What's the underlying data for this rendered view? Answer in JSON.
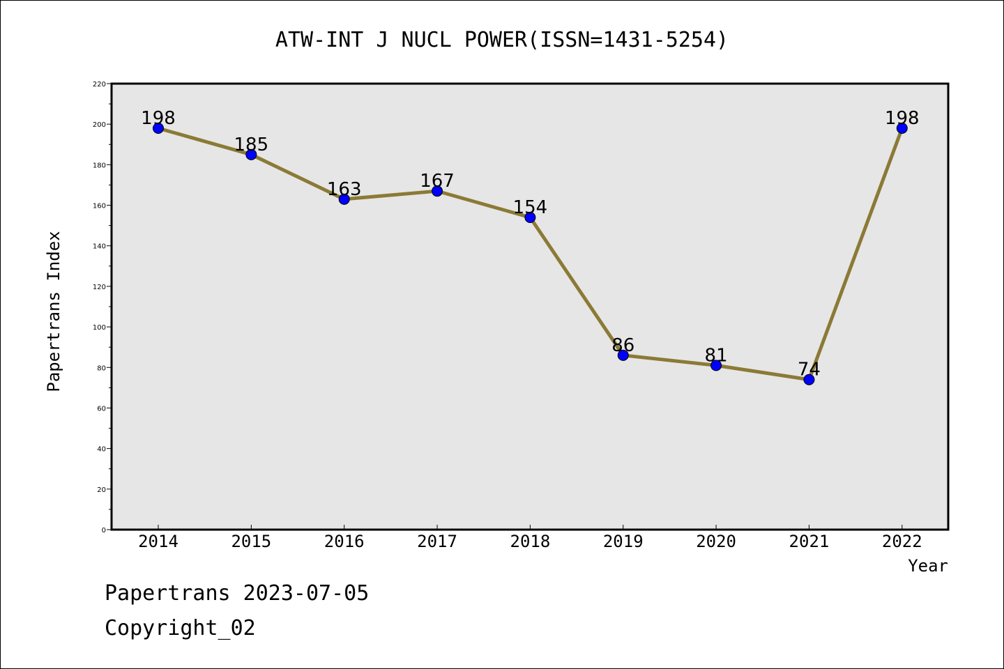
{
  "chart_data": {
    "type": "line",
    "title": "ATW-INT J NUCL POWER(ISSN=1431-5254)",
    "xlabel": "Year",
    "ylabel": "Papertrans Index",
    "categories": [
      "2014",
      "2015",
      "2016",
      "2017",
      "2018",
      "2019",
      "2020",
      "2021",
      "2022"
    ],
    "values": [
      198,
      185,
      163,
      167,
      154,
      86,
      81,
      74,
      198
    ],
    "ylim": [
      0,
      220
    ],
    "yticks": [
      0,
      20,
      40,
      60,
      80,
      100,
      120,
      140,
      160,
      180,
      200,
      220
    ],
    "grid": false,
    "legend": "none",
    "colors": {
      "line": "#8b7a36",
      "marker": "#0000ff",
      "plot_background": "#e6e6e6"
    }
  },
  "footer": {
    "date_text": "Papertrans 2023-07-05",
    "copyright_text": "Copyright_02"
  }
}
